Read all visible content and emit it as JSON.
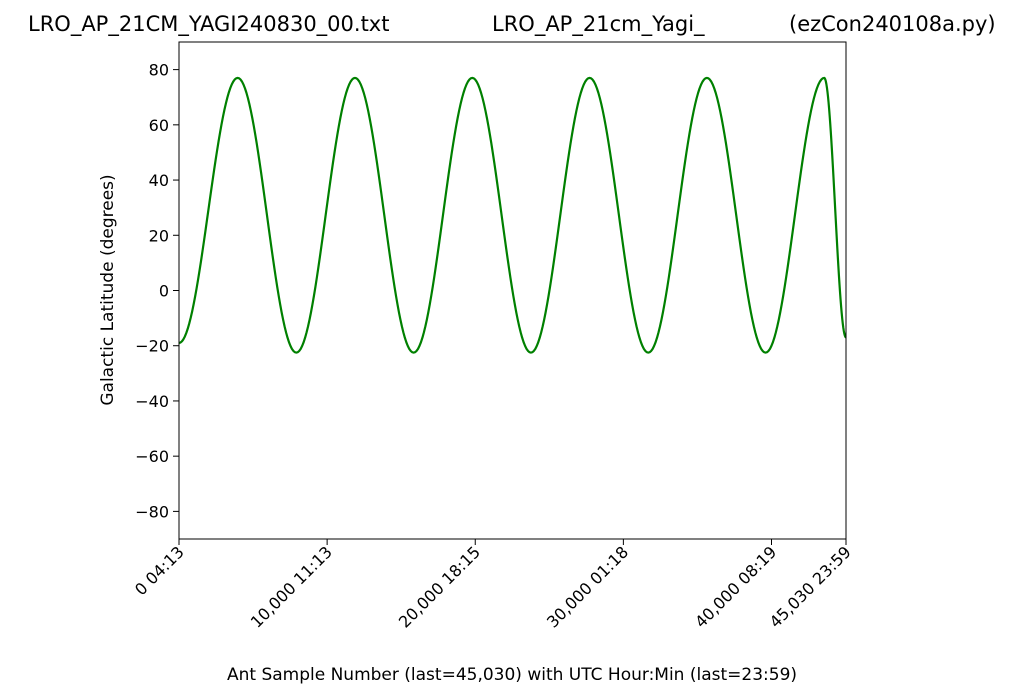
{
  "chart_data": {
    "type": "line",
    "title_left": "LRO_AP_21CM_YAGI240830_00.txt",
    "title_center": "LRO_AP_21cm_Yagi_",
    "title_right": "(ezCon240108a.py)",
    "xlabel": "Ant Sample Number (last=45,030) with UTC Hour:Min (last=23:59)",
    "ylabel": "Galactic Latitude (degrees)",
    "xlim": [
      0,
      45030
    ],
    "ylim": [
      -90,
      90
    ],
    "x_ticks": [
      {
        "value": 0,
        "label": "0  04:13"
      },
      {
        "value": 10000,
        "label": "10,000  11:13"
      },
      {
        "value": 20000,
        "label": "20,000  18:15"
      },
      {
        "value": 30000,
        "label": "30,000  01:18"
      },
      {
        "value": 40000,
        "label": "40,000  08:19"
      },
      {
        "value": 45030,
        "label": "45,030  23:59"
      }
    ],
    "y_ticks": [
      {
        "value": 80,
        "label": "80"
      },
      {
        "value": 60,
        "label": "60"
      },
      {
        "value": 40,
        "label": "40"
      },
      {
        "value": 20,
        "label": "20"
      },
      {
        "value": 0,
        "label": "0"
      },
      {
        "value": -20,
        "label": "−20"
      },
      {
        "value": -40,
        "label": "−40"
      },
      {
        "value": -60,
        "label": "−60"
      },
      {
        "value": -80,
        "label": "−80"
      }
    ],
    "grid": false,
    "series": [
      {
        "color": "#008000",
        "x": [
          0,
          3960,
          7920,
          11880,
          15840,
          19800,
          23760,
          27720,
          31680,
          35640,
          39600,
          43560,
          45030
        ],
        "y": [
          -19,
          77,
          -22.5,
          77,
          -22.5,
          77,
          -22.5,
          77,
          -22.5,
          77,
          -22.5,
          77,
          -17
        ],
        "x_peaks": [
          3960,
          11880,
          19800,
          27720,
          35640,
          43560
        ],
        "y_max": 77,
        "y_min": -22.5
      }
    ]
  }
}
